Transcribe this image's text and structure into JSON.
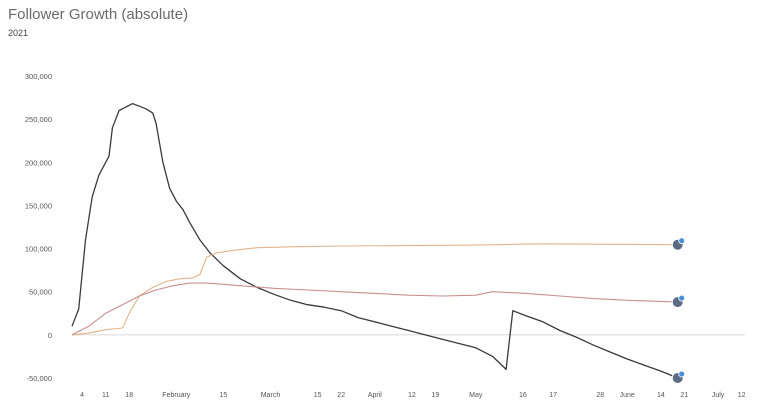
{
  "header": {
    "title": "Follower Growth (absolute)",
    "subtitle": "2021"
  },
  "colors": {
    "series_dark": "#3a3a3a",
    "series_orange": "#e3b48c",
    "series_red": "#c98f8f",
    "zero_line": "#cccccc"
  },
  "chart_data": {
    "type": "line",
    "title": "Follower Growth (absolute)",
    "subtitle": "2021",
    "xlabel": "",
    "ylabel": "",
    "ylim": [
      -50000,
      300000
    ],
    "ytick_values": [
      -50000,
      0,
      50000,
      100000,
      150000,
      200000,
      250000,
      300000
    ],
    "ytick_labels": [
      "-50,000",
      "0",
      "50,000",
      "100,000",
      "150,000",
      "200,000",
      "250,000",
      "300,000"
    ],
    "xlim": [
      0,
      195
    ],
    "x_ticks": [
      {
        "x": 3,
        "label": "4"
      },
      {
        "x": 10,
        "label": "11"
      },
      {
        "x": 17,
        "label": "18"
      },
      {
        "x": 31,
        "label": "February"
      },
      {
        "x": 45,
        "label": "15"
      },
      {
        "x": 59,
        "label": "March"
      },
      {
        "x": 73,
        "label": "15"
      },
      {
        "x": 80,
        "label": "22"
      },
      {
        "x": 90,
        "label": "April"
      },
      {
        "x": 101,
        "label": "12"
      },
      {
        "x": 108,
        "label": "19"
      },
      {
        "x": 120,
        "label": "May"
      },
      {
        "x": 134,
        "label": "16"
      },
      {
        "x": 143,
        "label": "17"
      },
      {
        "x": 157,
        "label": "28"
      },
      {
        "x": 165,
        "label": "June"
      },
      {
        "x": 175,
        "label": "14"
      },
      {
        "x": 182,
        "label": "21"
      },
      {
        "x": 192,
        "label": "July"
      },
      {
        "x": 199,
        "label": "12"
      }
    ],
    "grid": false,
    "legend": "avatars at line ends (right)",
    "series": [
      {
        "color": "#3a3a3a",
        "icon": "account-avatar-icon",
        "points": [
          [
            0,
            10000
          ],
          [
            2,
            30000
          ],
          [
            4,
            110000
          ],
          [
            6,
            160000
          ],
          [
            8,
            185000
          ],
          [
            10,
            200000
          ],
          [
            11,
            207000
          ],
          [
            12,
            240000
          ],
          [
            14,
            260000
          ],
          [
            16,
            264000
          ],
          [
            18,
            268000
          ],
          [
            20,
            265000
          ],
          [
            22,
            262000
          ],
          [
            24,
            257000
          ],
          [
            25,
            245000
          ],
          [
            27,
            200000
          ],
          [
            29,
            170000
          ],
          [
            31,
            155000
          ],
          [
            33,
            145000
          ],
          [
            35,
            130000
          ],
          [
            38,
            110000
          ],
          [
            41,
            95000
          ],
          [
            45,
            80000
          ],
          [
            50,
            65000
          ],
          [
            55,
            55000
          ],
          [
            60,
            47000
          ],
          [
            65,
            40000
          ],
          [
            70,
            35000
          ],
          [
            75,
            32000
          ],
          [
            80,
            28000
          ],
          [
            85,
            20000
          ],
          [
            90,
            15000
          ],
          [
            95,
            10000
          ],
          [
            100,
            5000
          ],
          [
            105,
            0
          ],
          [
            110,
            -5000
          ],
          [
            115,
            -10000
          ],
          [
            120,
            -15000
          ],
          [
            125,
            -25000
          ],
          [
            129,
            -40000
          ],
          [
            131,
            28000
          ],
          [
            135,
            22000
          ],
          [
            140,
            15000
          ],
          [
            145,
            5000
          ],
          [
            150,
            -3000
          ],
          [
            155,
            -12000
          ],
          [
            160,
            -20000
          ],
          [
            165,
            -28000
          ],
          [
            170,
            -35000
          ],
          [
            175,
            -42000
          ],
          [
            180,
            -50000
          ]
        ]
      },
      {
        "color": "#e3b48c",
        "icon": "account-avatar-icon",
        "points": [
          [
            0,
            0
          ],
          [
            5,
            2000
          ],
          [
            10,
            6000
          ],
          [
            15,
            8000
          ],
          [
            17,
            25000
          ],
          [
            20,
            45000
          ],
          [
            24,
            55000
          ],
          [
            28,
            62000
          ],
          [
            32,
            65000
          ],
          [
            36,
            66000
          ],
          [
            38,
            70000
          ],
          [
            40,
            90000
          ],
          [
            43,
            95000
          ],
          [
            48,
            98000
          ],
          [
            55,
            101000
          ],
          [
            65,
            102000
          ],
          [
            80,
            103000
          ],
          [
            100,
            103500
          ],
          [
            120,
            104000
          ],
          [
            140,
            105500
          ],
          [
            160,
            105000
          ],
          [
            180,
            104500
          ]
        ]
      },
      {
        "color": "#c98f8f",
        "icon": "account-avatar-icon",
        "points": [
          [
            0,
            0
          ],
          [
            5,
            10000
          ],
          [
            10,
            25000
          ],
          [
            15,
            35000
          ],
          [
            20,
            45000
          ],
          [
            25,
            52000
          ],
          [
            30,
            57000
          ],
          [
            35,
            60000
          ],
          [
            40,
            60000
          ],
          [
            50,
            57000
          ],
          [
            60,
            54000
          ],
          [
            70,
            52000
          ],
          [
            80,
            50000
          ],
          [
            90,
            48000
          ],
          [
            100,
            46000
          ],
          [
            110,
            45000
          ],
          [
            120,
            46000
          ],
          [
            125,
            50000
          ],
          [
            135,
            48000
          ],
          [
            145,
            45000
          ],
          [
            155,
            42000
          ],
          [
            165,
            40000
          ],
          [
            180,
            38000
          ]
        ]
      }
    ]
  }
}
